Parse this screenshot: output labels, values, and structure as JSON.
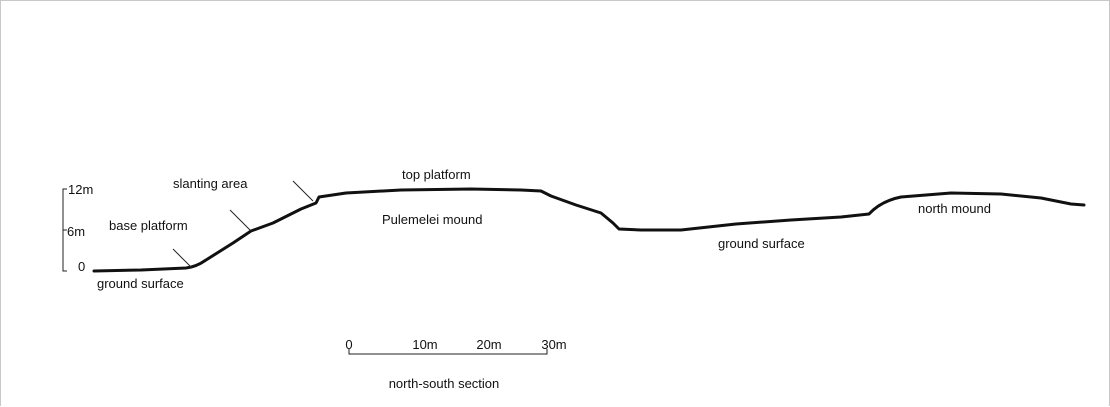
{
  "vertical_scale": {
    "top": "12m",
    "middle": "6m",
    "bottom": "0"
  },
  "labels": {
    "slanting_area": "slanting area",
    "base_platform": "base platform",
    "ground_surface_left": "ground surface",
    "top_platform": "top platform",
    "pulemelei_mound": "Pulemelei mound",
    "ground_surface_right": "ground surface",
    "north_mound": "north mound"
  },
  "horizontal_scale": {
    "ticks": [
      "0",
      "10m",
      "20m",
      "30m"
    ],
    "caption": "north-south section"
  }
}
